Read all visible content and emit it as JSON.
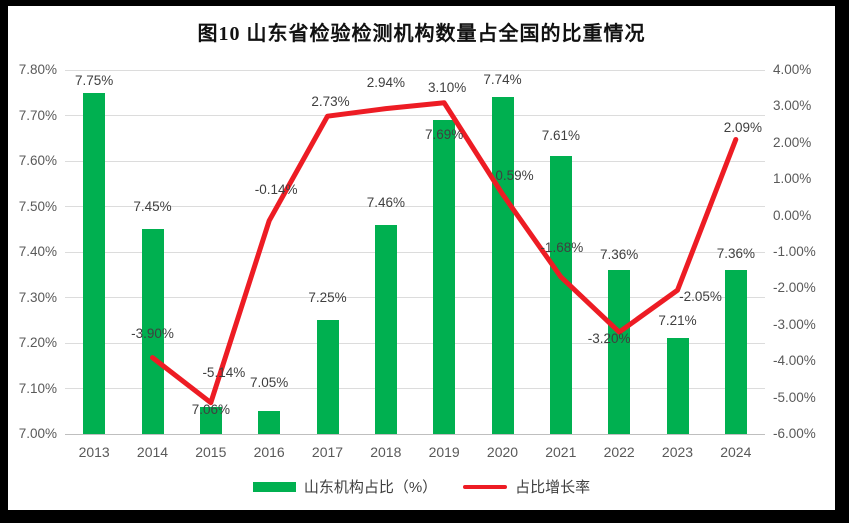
{
  "title": "图10  山东省检验检测机构数量占全国的比重情况",
  "colors": {
    "bar_green": "#00B050",
    "line_red": "#ED1C24",
    "gridline": "#DCDCDC",
    "axis_line": "#BFBFBF",
    "axis_text": "#595959",
    "label_text": "#3F3F3F",
    "frame_background": "#000000",
    "chart_background": "#FFFFFF"
  },
  "legend": {
    "items": [
      {
        "label": "山东机构占比（%）",
        "color": "#00B050",
        "shape": "rect"
      },
      {
        "label": "占比增长率",
        "color": "#ED1C24",
        "shape": "line"
      }
    ]
  },
  "chart_data": {
    "type": "bar",
    "subtype": "combo-bar-line",
    "title": "图10  山东省检验检测机构数量占全国的比重情况",
    "categories": [
      "2013",
      "2014",
      "2015",
      "2016",
      "2017",
      "2018",
      "2019",
      "2020",
      "2021",
      "2022",
      "2023",
      "2024"
    ],
    "series": [
      {
        "name": "山东机构占比（%）",
        "type": "bar",
        "axis": "left",
        "color": "#00B050",
        "values": [
          7.75,
          7.45,
          7.06,
          7.05,
          7.25,
          7.46,
          7.69,
          7.74,
          7.61,
          7.36,
          7.21,
          7.36
        ],
        "labels": [
          "7.75%",
          "7.45%",
          "7.06%",
          "7.05%",
          "7.25%",
          "7.46%",
          "7.69%",
          "7.74%",
          "7.61%",
          "7.36%",
          "7.21%",
          "7.36%"
        ]
      },
      {
        "name": "占比增长率",
        "type": "line",
        "axis": "right",
        "color": "#ED1C24",
        "values": [
          null,
          -3.9,
          -5.14,
          -0.14,
          2.73,
          2.94,
          3.1,
          0.59,
          -1.68,
          -3.2,
          -2.05,
          2.09
        ],
        "labels": [
          "",
          "-3.90%",
          "-5.14%",
          "-0.14%",
          "2.73%",
          "2.94%",
          "3.10%",
          "0.59%",
          "-1.68%",
          "-3.20%",
          "-2.05%",
          "2.09%"
        ]
      }
    ],
    "left_axis": {
      "min": 7.0,
      "max": 7.8,
      "step": 0.1,
      "ticks": [
        "7.80%",
        "7.70%",
        "7.60%",
        "7.50%",
        "7.40%",
        "7.30%",
        "7.20%",
        "7.10%",
        "7.00%"
      ]
    },
    "right_axis": {
      "min": -6.0,
      "max": 4.0,
      "step": 1.0,
      "ticks": [
        "4.00%",
        "3.00%",
        "2.00%",
        "1.00%",
        "0.00%",
        "-1.00%",
        "-2.00%",
        "-3.00%",
        "-4.00%",
        "-5.00%",
        "-6.00%"
      ]
    },
    "grid": true,
    "legend_position": "bottom",
    "xlabel": "",
    "ylabel_left": "",
    "ylabel_right": ""
  }
}
